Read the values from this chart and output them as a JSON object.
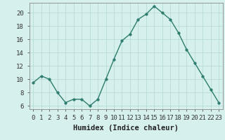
{
  "x": [
    0,
    1,
    2,
    3,
    4,
    5,
    6,
    7,
    8,
    9,
    10,
    11,
    12,
    13,
    14,
    15,
    16,
    17,
    18,
    19,
    20,
    21,
    22,
    23
  ],
  "y": [
    9.5,
    10.5,
    10.0,
    8.0,
    6.5,
    7.0,
    7.0,
    6.0,
    7.0,
    10.0,
    13.0,
    15.8,
    16.8,
    19.0,
    19.8,
    21.0,
    20.0,
    19.0,
    17.0,
    14.5,
    12.5,
    10.5,
    8.5,
    6.5
  ],
  "xlim": [
    -0.5,
    23.5
  ],
  "ylim": [
    5.5,
    21.5
  ],
  "yticks": [
    6,
    8,
    10,
    12,
    14,
    16,
    18,
    20
  ],
  "xticks": [
    0,
    1,
    2,
    3,
    4,
    5,
    6,
    7,
    8,
    9,
    10,
    11,
    12,
    13,
    14,
    15,
    16,
    17,
    18,
    19,
    20,
    21,
    22,
    23
  ],
  "xlabel": "Humidex (Indice chaleur)",
  "line_color": "#2e7d6e",
  "marker": "o",
  "marker_size": 2.5,
  "bg_color": "#d6f0ee",
  "grid_color": "#b8dcd8",
  "tick_label_fontsize": 6.5,
  "xlabel_fontsize": 7.5
}
